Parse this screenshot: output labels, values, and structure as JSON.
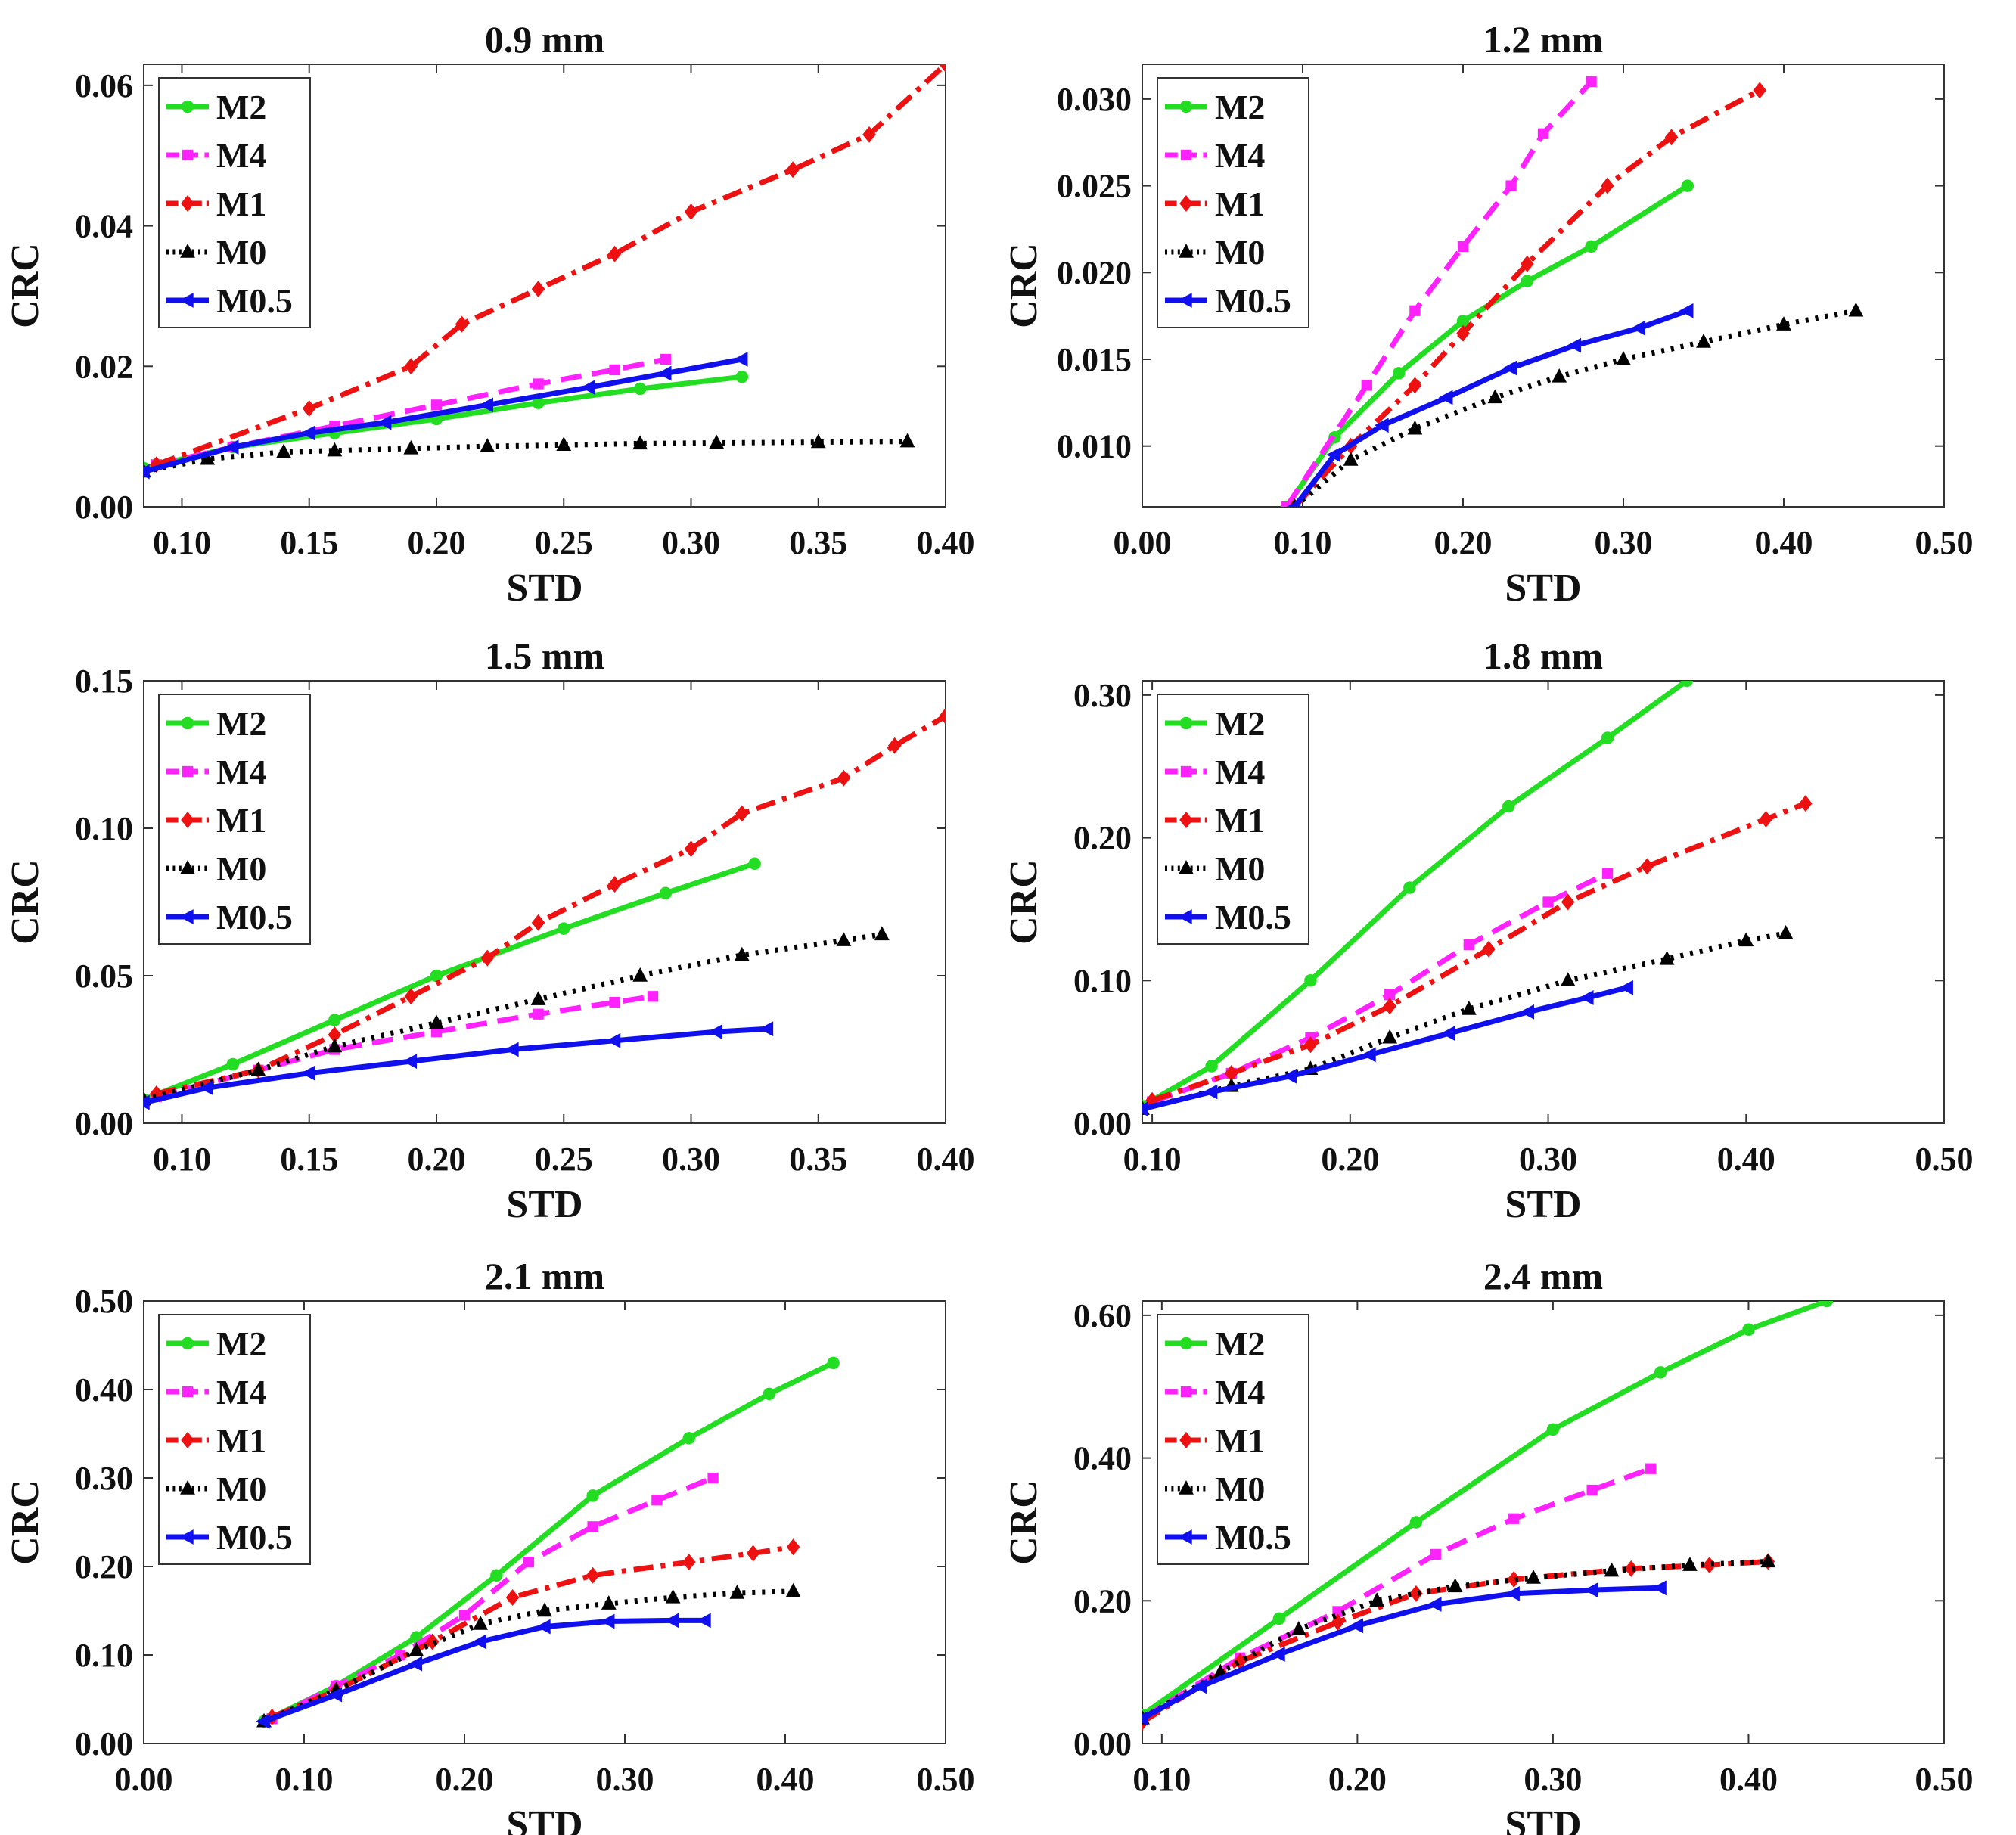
{
  "colors": {
    "M2": "#22dd22",
    "M4": "#ff22ff",
    "M1": "#ee1111",
    "M0": "#000000",
    "M0.5": "#1010ee"
  },
  "series_styles": {
    "M2": {
      "dash": "",
      "marker": "circle"
    },
    "M4": {
      "dash": "28 14",
      "marker": "square"
    },
    "M1": {
      "dash": "26 10 6 10",
      "marker": "diamond"
    },
    "M0": {
      "dash": "4 9",
      "marker": "triangle"
    },
    "M0.5": {
      "dash": "",
      "marker": "triangle-left"
    }
  },
  "chart_data": [
    {
      "type": "line",
      "title": "0.9 mm",
      "xlabel": "STD",
      "ylabel": "CRC",
      "xlim": [
        0.085,
        0.4
      ],
      "ylim": [
        0,
        0.063
      ],
      "xticks": [
        0.1,
        0.15,
        0.2,
        0.25,
        0.3,
        0.35,
        0.4
      ],
      "yticks": [
        0.0,
        0.02,
        0.04,
        0.06
      ],
      "xdec": 2,
      "ydec": 2,
      "legend": {
        "position": "top-left",
        "entries": [
          "M2",
          "M4",
          "M1",
          "M0",
          "M0.5"
        ]
      },
      "series": [
        {
          "name": "M2",
          "x": [
            0.085,
            0.12,
            0.16,
            0.2,
            0.24,
            0.28,
            0.32
          ],
          "y": [
            0.0055,
            0.0085,
            0.0105,
            0.0125,
            0.0148,
            0.0168,
            0.0185
          ]
        },
        {
          "name": "M4",
          "x": [
            0.09,
            0.12,
            0.16,
            0.2,
            0.24,
            0.27,
            0.29
          ],
          "y": [
            0.006,
            0.0085,
            0.0115,
            0.0145,
            0.0175,
            0.0195,
            0.021
          ]
        },
        {
          "name": "M1",
          "x": [
            0.09,
            0.15,
            0.19,
            0.21,
            0.24,
            0.27,
            0.3,
            0.34,
            0.37,
            0.4
          ],
          "y": [
            0.006,
            0.014,
            0.02,
            0.026,
            0.031,
            0.036,
            0.042,
            0.048,
            0.053,
            0.063
          ]
        },
        {
          "name": "M0",
          "x": [
            0.085,
            0.11,
            0.14,
            0.16,
            0.19,
            0.22,
            0.25,
            0.28,
            0.31,
            0.35,
            0.385
          ],
          "y": [
            0.005,
            0.0068,
            0.0078,
            0.008,
            0.0083,
            0.0086,
            0.0088,
            0.009,
            0.0091,
            0.0092,
            0.0093
          ]
        },
        {
          "name": "M0.5",
          "x": [
            0.085,
            0.12,
            0.15,
            0.18,
            0.22,
            0.26,
            0.29,
            0.32
          ],
          "y": [
            0.005,
            0.0085,
            0.0105,
            0.012,
            0.0145,
            0.017,
            0.019,
            0.021
          ]
        }
      ]
    },
    {
      "type": "line",
      "title": "1.2 mm",
      "xlabel": "STD",
      "ylabel": "CRC",
      "xlim": [
        0,
        0.5
      ],
      "ylim": [
        0.0065,
        0.032
      ],
      "xticks": [
        0.0,
        0.1,
        0.2,
        0.3,
        0.4,
        0.5
      ],
      "yticks": [
        0.01,
        0.015,
        0.02,
        0.025,
        0.03
      ],
      "xdec": 2,
      "ydec": 3,
      "legend": {
        "position": "top-left",
        "entries": [
          "M2",
          "M4",
          "M1",
          "M0",
          "M0.5"
        ]
      },
      "series": [
        {
          "name": "M2",
          "x": [
            0.09,
            0.12,
            0.16,
            0.2,
            0.24,
            0.28,
            0.34
          ],
          "y": [
            0.0065,
            0.0105,
            0.0142,
            0.0172,
            0.0195,
            0.0215,
            0.025
          ]
        },
        {
          "name": "M4",
          "x": [
            0.09,
            0.14,
            0.17,
            0.2,
            0.23,
            0.25,
            0.28
          ],
          "y": [
            0.0065,
            0.0135,
            0.0178,
            0.0215,
            0.025,
            0.028,
            0.031
          ]
        },
        {
          "name": "M1",
          "x": [
            0.095,
            0.13,
            0.17,
            0.2,
            0.24,
            0.29,
            0.33,
            0.385
          ],
          "y": [
            0.0065,
            0.01,
            0.0135,
            0.0165,
            0.0205,
            0.025,
            0.0278,
            0.0305
          ]
        },
        {
          "name": "M0",
          "x": [
            0.095,
            0.13,
            0.17,
            0.22,
            0.26,
            0.3,
            0.35,
            0.4,
            0.445
          ],
          "y": [
            0.0065,
            0.0092,
            0.011,
            0.0128,
            0.014,
            0.015,
            0.016,
            0.017,
            0.0178
          ]
        },
        {
          "name": "M0.5",
          "x": [
            0.095,
            0.12,
            0.15,
            0.19,
            0.23,
            0.27,
            0.31,
            0.34
          ],
          "y": [
            0.0065,
            0.0095,
            0.0112,
            0.0128,
            0.0145,
            0.0158,
            0.0168,
            0.0178
          ]
        }
      ]
    },
    {
      "type": "line",
      "title": "1.5 mm",
      "xlabel": "STD",
      "ylabel": "CRC",
      "xlim": [
        0.085,
        0.4
      ],
      "ylim": [
        0,
        0.15
      ],
      "xticks": [
        0.1,
        0.15,
        0.2,
        0.25,
        0.3,
        0.35,
        0.4
      ],
      "yticks": [
        0.0,
        0.05,
        0.1,
        0.15
      ],
      "xdec": 2,
      "ydec": 2,
      "legend": {
        "position": "top-left",
        "entries": [
          "M2",
          "M4",
          "M1",
          "M0",
          "M0.5"
        ]
      },
      "series": [
        {
          "name": "M2",
          "x": [
            0.085,
            0.12,
            0.16,
            0.2,
            0.25,
            0.29,
            0.325
          ],
          "y": [
            0.008,
            0.02,
            0.035,
            0.05,
            0.066,
            0.078,
            0.088
          ]
        },
        {
          "name": "M4",
          "x": [
            0.09,
            0.13,
            0.16,
            0.2,
            0.24,
            0.27,
            0.285
          ],
          "y": [
            0.009,
            0.018,
            0.025,
            0.031,
            0.037,
            0.041,
            0.043
          ]
        },
        {
          "name": "M1",
          "x": [
            0.09,
            0.13,
            0.16,
            0.19,
            0.22,
            0.24,
            0.27,
            0.3,
            0.32,
            0.36,
            0.38,
            0.4
          ],
          "y": [
            0.01,
            0.018,
            0.03,
            0.043,
            0.056,
            0.068,
            0.081,
            0.093,
            0.105,
            0.117,
            0.128,
            0.138
          ]
        },
        {
          "name": "M0",
          "x": [
            0.085,
            0.13,
            0.16,
            0.2,
            0.24,
            0.28,
            0.32,
            0.36,
            0.375
          ],
          "y": [
            0.008,
            0.018,
            0.026,
            0.034,
            0.042,
            0.05,
            0.057,
            0.062,
            0.064
          ]
        },
        {
          "name": "M0.5",
          "x": [
            0.085,
            0.11,
            0.15,
            0.19,
            0.23,
            0.27,
            0.31,
            0.33
          ],
          "y": [
            0.007,
            0.012,
            0.017,
            0.021,
            0.025,
            0.028,
            0.031,
            0.032
          ]
        }
      ]
    },
    {
      "type": "line",
      "title": "1.8 mm",
      "xlabel": "STD",
      "ylabel": "CRC",
      "xlim": [
        0.095,
        0.5
      ],
      "ylim": [
        0,
        0.31
      ],
      "xticks": [
        0.1,
        0.2,
        0.3,
        0.4,
        0.5
      ],
      "yticks": [
        0.0,
        0.1,
        0.2,
        0.3
      ],
      "xdec": 2,
      "ydec": 2,
      "legend": {
        "position": "top-left",
        "entries": [
          "M2",
          "M4",
          "M1",
          "M0",
          "M0.5"
        ]
      },
      "series": [
        {
          "name": "M2",
          "x": [
            0.095,
            0.13,
            0.18,
            0.23,
            0.28,
            0.33,
            0.37
          ],
          "y": [
            0.012,
            0.04,
            0.1,
            0.165,
            0.222,
            0.27,
            0.31
          ]
        },
        {
          "name": "M4",
          "x": [
            0.1,
            0.14,
            0.18,
            0.22,
            0.26,
            0.3,
            0.33
          ],
          "y": [
            0.015,
            0.035,
            0.06,
            0.09,
            0.125,
            0.155,
            0.175
          ]
        },
        {
          "name": "M1",
          "x": [
            0.1,
            0.14,
            0.18,
            0.22,
            0.27,
            0.31,
            0.35,
            0.41,
            0.43
          ],
          "y": [
            0.016,
            0.035,
            0.055,
            0.082,
            0.122,
            0.155,
            0.18,
            0.213,
            0.224
          ]
        },
        {
          "name": "M0",
          "x": [
            0.095,
            0.14,
            0.18,
            0.22,
            0.26,
            0.31,
            0.36,
            0.4,
            0.42
          ],
          "y": [
            0.01,
            0.026,
            0.038,
            0.06,
            0.08,
            0.1,
            0.115,
            0.128,
            0.133
          ]
        },
        {
          "name": "M0.5",
          "x": [
            0.095,
            0.13,
            0.17,
            0.21,
            0.25,
            0.29,
            0.32,
            0.34
          ],
          "y": [
            0.01,
            0.022,
            0.033,
            0.048,
            0.063,
            0.078,
            0.088,
            0.095
          ]
        }
      ]
    },
    {
      "type": "line",
      "title": "2.1 mm",
      "xlabel": "STD",
      "ylabel": "CRC",
      "xlim": [
        0,
        0.5
      ],
      "ylim": [
        0,
        0.5
      ],
      "xticks": [
        0.0,
        0.1,
        0.2,
        0.3,
        0.4,
        0.5
      ],
      "yticks": [
        0.0,
        0.1,
        0.2,
        0.3,
        0.4,
        0.5
      ],
      "xdec": 2,
      "ydec": 2,
      "legend": {
        "position": "top-left",
        "entries": [
          "M2",
          "M4",
          "M1",
          "M0",
          "M0.5"
        ]
      },
      "series": [
        {
          "name": "M2",
          "x": [
            0.075,
            0.12,
            0.17,
            0.22,
            0.28,
            0.34,
            0.39,
            0.43
          ],
          "y": [
            0.025,
            0.065,
            0.12,
            0.19,
            0.28,
            0.345,
            0.395,
            0.43
          ]
        },
        {
          "name": "M4",
          "x": [
            0.08,
            0.12,
            0.16,
            0.2,
            0.24,
            0.28,
            0.32,
            0.355
          ],
          "y": [
            0.028,
            0.065,
            0.1,
            0.145,
            0.205,
            0.245,
            0.275,
            0.3
          ]
        },
        {
          "name": "M1",
          "x": [
            0.08,
            0.12,
            0.18,
            0.23,
            0.28,
            0.34,
            0.38,
            0.405
          ],
          "y": [
            0.03,
            0.06,
            0.115,
            0.165,
            0.19,
            0.205,
            0.215,
            0.222
          ]
        },
        {
          "name": "M0",
          "x": [
            0.075,
            0.12,
            0.17,
            0.21,
            0.25,
            0.29,
            0.33,
            0.37,
            0.405
          ],
          "y": [
            0.025,
            0.06,
            0.105,
            0.135,
            0.15,
            0.158,
            0.165,
            0.17,
            0.172
          ]
        },
        {
          "name": "M0.5",
          "x": [
            0.075,
            0.12,
            0.17,
            0.21,
            0.25,
            0.29,
            0.33,
            0.35
          ],
          "y": [
            0.025,
            0.055,
            0.09,
            0.115,
            0.132,
            0.138,
            0.139,
            0.139
          ]
        }
      ]
    },
    {
      "type": "line",
      "title": "2.4 mm",
      "xlabel": "STD",
      "ylabel": "CRC",
      "xlim": [
        0.09,
        0.5
      ],
      "ylim": [
        0,
        0.62
      ],
      "xticks": [
        0.1,
        0.2,
        0.3,
        0.4,
        0.5
      ],
      "yticks": [
        0.0,
        0.2,
        0.4,
        0.6
      ],
      "xdec": 2,
      "ydec": 2,
      "legend": {
        "position": "top-left",
        "entries": [
          "M2",
          "M4",
          "M1",
          "M0",
          "M0.5"
        ]
      },
      "series": [
        {
          "name": "M2",
          "x": [
            0.09,
            0.16,
            0.23,
            0.3,
            0.355,
            0.4,
            0.44
          ],
          "y": [
            0.04,
            0.175,
            0.31,
            0.44,
            0.52,
            0.58,
            0.62
          ]
        },
        {
          "name": "M4",
          "x": [
            0.09,
            0.14,
            0.19,
            0.24,
            0.28,
            0.32,
            0.35
          ],
          "y": [
            0.035,
            0.12,
            0.185,
            0.265,
            0.315,
            0.355,
            0.385
          ]
        },
        {
          "name": "M1",
          "x": [
            0.09,
            0.14,
            0.19,
            0.23,
            0.28,
            0.34,
            0.38,
            0.41
          ],
          "y": [
            0.03,
            0.115,
            0.17,
            0.21,
            0.23,
            0.245,
            0.25,
            0.255
          ]
        },
        {
          "name": "M0",
          "x": [
            0.09,
            0.13,
            0.17,
            0.21,
            0.25,
            0.29,
            0.33,
            0.37,
            0.41
          ],
          "y": [
            0.035,
            0.1,
            0.16,
            0.2,
            0.22,
            0.232,
            0.242,
            0.25,
            0.255
          ]
        },
        {
          "name": "M0.5",
          "x": [
            0.09,
            0.12,
            0.16,
            0.2,
            0.24,
            0.28,
            0.32,
            0.355
          ],
          "y": [
            0.035,
            0.08,
            0.125,
            0.165,
            0.195,
            0.21,
            0.215,
            0.218
          ]
        }
      ]
    }
  ]
}
